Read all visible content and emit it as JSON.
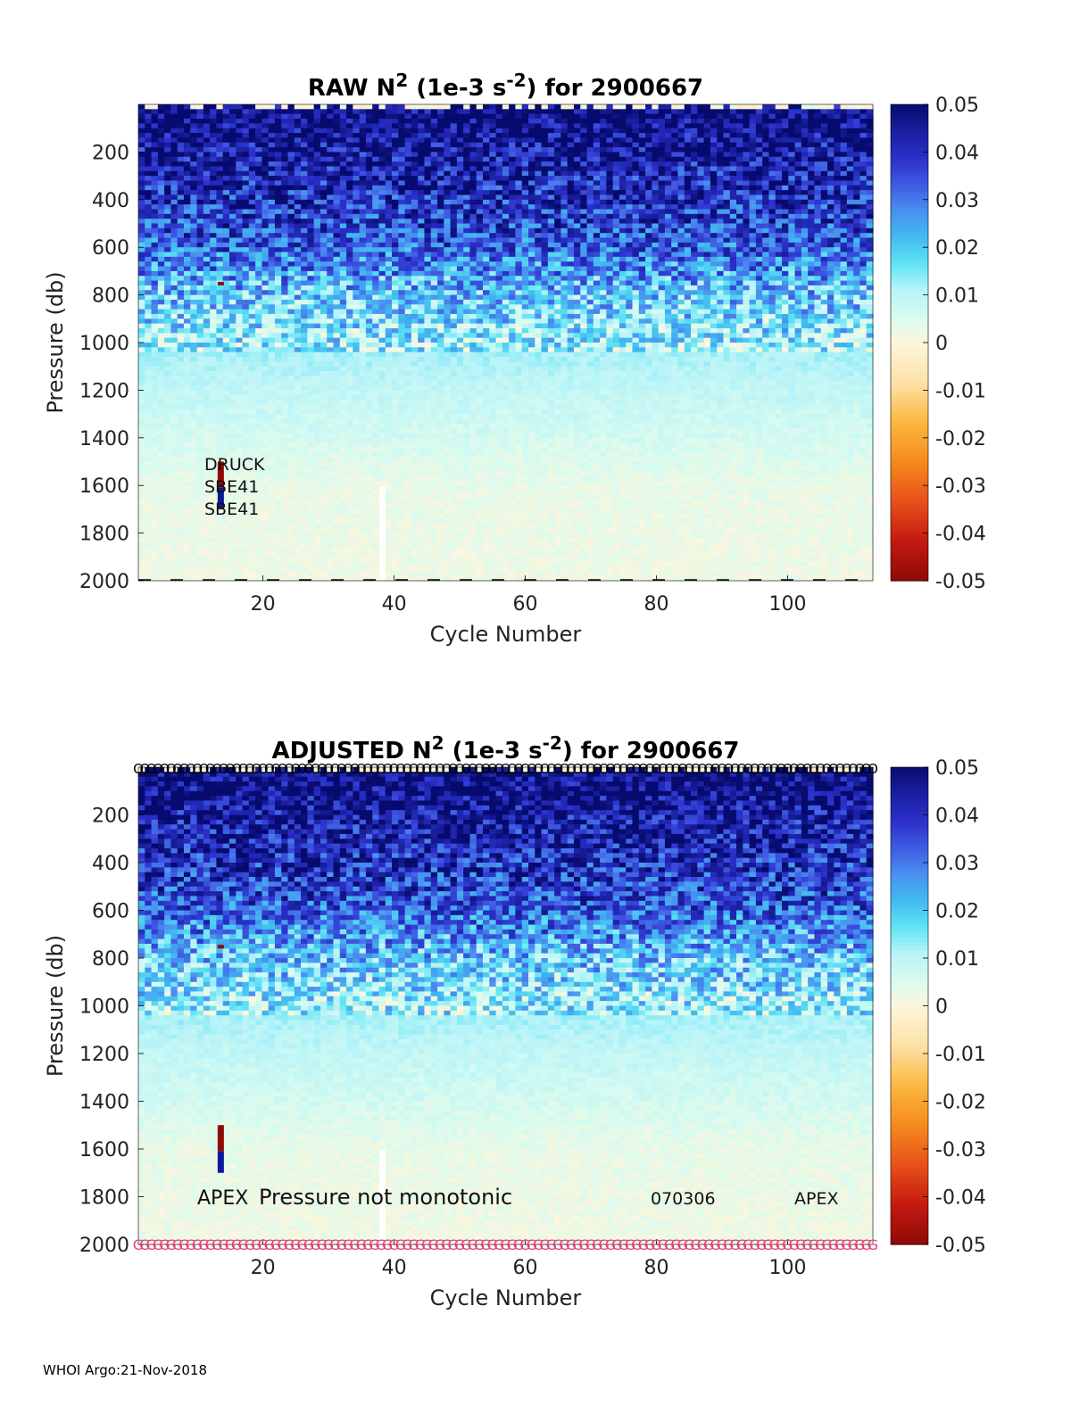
{
  "footer": "WHOI Argo:21-Nov-2018",
  "colors": {
    "colormap_positive": [
      "#fdf6dc",
      "#d6fbf0",
      "#b6f3f8",
      "#5ee3f5",
      "#42b9f0",
      "#4a8ef0",
      "#3e58e2",
      "#2a2fc8",
      "#1a1fa0",
      "#070b6e"
    ],
    "colormap_negative": [
      "#fdf6dc",
      "#fde2a6",
      "#fbb840",
      "#f58a1c",
      "#e8501a",
      "#c41a10",
      "#8e0a06"
    ],
    "marker_top": "#000000",
    "marker_bottom": "#e0407a"
  },
  "chart_data": [
    {
      "type": "heatmap",
      "title_parts": [
        "RAW N",
        "2",
        " (1e-3 s",
        "-2",
        ") for 2900667"
      ],
      "xlabel": "Cycle Number",
      "ylabel": "Pressure (db)",
      "xlim": [
        1,
        113
      ],
      "ylim": [
        2000,
        0
      ],
      "xticks": [
        "20",
        "40",
        "60",
        "80",
        "100"
      ],
      "yticks": [
        "200",
        "400",
        "600",
        "800",
        "1000",
        "1200",
        "1400",
        "1600",
        "1800",
        "2000"
      ],
      "colorbar": {
        "min": -0.05,
        "max": 0.05,
        "ticks": [
          "0.05",
          "0.04",
          "0.03",
          "0.02",
          "0.01",
          "0",
          "-0.01",
          "-0.02",
          "-0.03",
          "-0.04",
          "-0.05"
        ]
      },
      "description_profile": [
        {
          "pressure": 50,
          "n2": 0.05
        },
        {
          "pressure": 200,
          "n2": 0.045
        },
        {
          "pressure": 400,
          "n2": 0.04
        },
        {
          "pressure": 600,
          "n2": 0.033
        },
        {
          "pressure": 800,
          "n2": 0.02
        },
        {
          "pressure": 1000,
          "n2": 0.013
        },
        {
          "pressure": 1200,
          "n2": 0.009
        },
        {
          "pressure": 1400,
          "n2": 0.006
        },
        {
          "pressure": 1600,
          "n2": 0.003
        },
        {
          "pressure": 2000,
          "n2": 0.002
        }
      ],
      "annotations": [
        "DRUCK",
        "SBE41",
        "SBE41"
      ],
      "has_markers": false
    },
    {
      "type": "heatmap",
      "title_parts": [
        "ADJUSTED N",
        "2",
        " (1e-3 s",
        "-2",
        ") for 2900667"
      ],
      "xlabel": "Cycle Number",
      "ylabel": "Pressure (db)",
      "xlim": [
        1,
        113
      ],
      "ylim": [
        2000,
        0
      ],
      "xticks": [
        "20",
        "40",
        "60",
        "80",
        "100"
      ],
      "yticks": [
        "200",
        "400",
        "600",
        "800",
        "1000",
        "1200",
        "1400",
        "1600",
        "1800",
        "2000"
      ],
      "colorbar": {
        "min": -0.05,
        "max": 0.05,
        "ticks": [
          "0.05",
          "0.04",
          "0.03",
          "0.02",
          "0.01",
          "0",
          "-0.01",
          "-0.02",
          "-0.03",
          "-0.04",
          "-0.05"
        ]
      },
      "description_profile": [
        {
          "pressure": 50,
          "n2": 0.05
        },
        {
          "pressure": 200,
          "n2": 0.045
        },
        {
          "pressure": 400,
          "n2": 0.04
        },
        {
          "pressure": 600,
          "n2": 0.033
        },
        {
          "pressure": 800,
          "n2": 0.02
        },
        {
          "pressure": 1000,
          "n2": 0.013
        },
        {
          "pressure": 1200,
          "n2": 0.009
        },
        {
          "pressure": 1400,
          "n2": 0.006
        },
        {
          "pressure": 1600,
          "n2": 0.003
        },
        {
          "pressure": 2000,
          "n2": 0.002
        }
      ],
      "annotations": [
        "APEX",
        "Pressure not monotonic",
        "070306",
        "APEX"
      ],
      "has_markers": true,
      "marker_top_glyph": "O",
      "marker_bottom_glyph": "G"
    }
  ]
}
